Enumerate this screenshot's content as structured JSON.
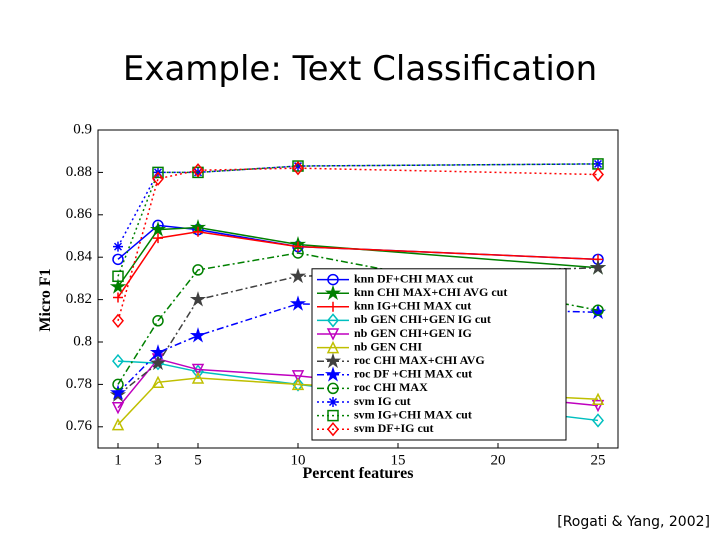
{
  "slide": {
    "title": "Example: Text Classification",
    "citation": "[Rogati & Yang, 2002]"
  },
  "chart_data": {
    "type": "line",
    "xlabel": "Percent features",
    "ylabel": "Micro F1",
    "x": [
      1,
      3,
      5,
      10,
      25
    ],
    "xlim": [
      0,
      26
    ],
    "xticks": [
      1,
      3,
      5,
      10,
      15,
      20,
      25
    ],
    "ylim": [
      0.75,
      0.9
    ],
    "yticks": [
      0.76,
      0.78,
      0.8,
      0.82,
      0.84,
      0.86,
      0.88,
      0.9
    ],
    "grid": false,
    "legend": "center-right",
    "series": [
      {
        "name": "knn DF+CHI MAX cut",
        "color": "#0000ff",
        "marker": "circle",
        "dash": "solid",
        "values": [
          0.839,
          0.855,
          0.853,
          0.845,
          0.839
        ]
      },
      {
        "name": "knn CHI MAX+CHI AVG cut",
        "color": "#008000",
        "marker": "star",
        "dash": "solid",
        "values": [
          0.826,
          0.853,
          0.854,
          0.846,
          0.835
        ]
      },
      {
        "name": "knn IG+CHI MAX cut",
        "color": "#ff0000",
        "marker": "plus",
        "dash": "solid",
        "values": [
          0.821,
          0.849,
          0.852,
          0.845,
          0.839
        ]
      },
      {
        "name": "nb GEN CHI+GEN IG  cut",
        "color": "#00bfbf",
        "marker": "diamond",
        "dash": "solid",
        "values": [
          0.791,
          0.79,
          0.786,
          0.78,
          0.763
        ]
      },
      {
        "name": "nb GEN CHI+GEN IG",
        "color": "#bf00bf",
        "marker": "triangle-down",
        "dash": "solid",
        "values": [
          0.769,
          0.792,
          0.787,
          0.784,
          0.77
        ]
      },
      {
        "name": "nb GEN CHI",
        "color": "#bfbf00",
        "marker": "triangle-up",
        "dash": "solid",
        "values": [
          0.761,
          0.781,
          0.783,
          0.78,
          0.773
        ]
      },
      {
        "name": "roc CHI MAX+CHI AVG",
        "color": "#404040",
        "marker": "star",
        "dash": "dashdot",
        "values": [
          0.775,
          0.79,
          0.82,
          0.831,
          0.835
        ]
      },
      {
        "name": "roc DF +CHI MAX cut",
        "color": "#0000ff",
        "marker": "star",
        "dash": "dashdot",
        "values": [
          0.776,
          0.795,
          0.803,
          0.818,
          0.814
        ]
      },
      {
        "name": "roc CHI MAX",
        "color": "#008000",
        "marker": "circle",
        "dash": "dashdot",
        "values": [
          0.78,
          0.81,
          0.834,
          0.842,
          0.815
        ]
      },
      {
        "name": "svm IG cut",
        "color": "#0000ff",
        "marker": "asterisk",
        "dash": "dotted",
        "values": [
          0.845,
          0.88,
          0.88,
          0.883,
          0.884
        ]
      },
      {
        "name": "svm IG+CHI MAX cut",
        "color": "#008000",
        "marker": "square",
        "dash": "dotted",
        "values": [
          0.831,
          0.88,
          0.88,
          0.883,
          0.884
        ]
      },
      {
        "name": "svm DF+IG cut",
        "color": "#ff0000",
        "marker": "diamond",
        "dash": "dotted",
        "values": [
          0.81,
          0.877,
          0.881,
          0.882,
          0.879
        ]
      }
    ]
  }
}
